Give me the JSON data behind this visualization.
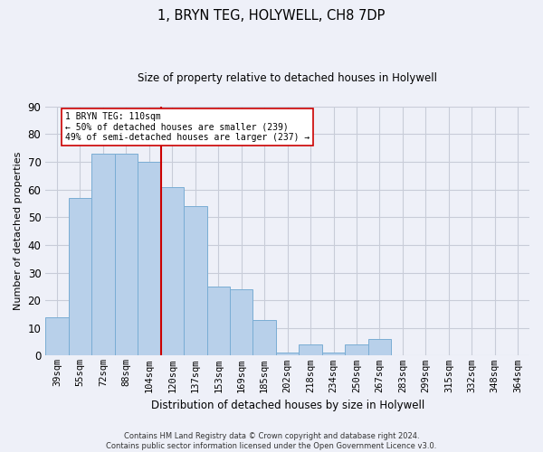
{
  "title": "1, BRYN TEG, HOLYWELL, CH8 7DP",
  "subtitle": "Size of property relative to detached houses in Holywell",
  "xlabel": "Distribution of detached houses by size in Holywell",
  "ylabel": "Number of detached properties",
  "categories": [
    "39sqm",
    "55sqm",
    "72sqm",
    "88sqm",
    "104sqm",
    "120sqm",
    "137sqm",
    "153sqm",
    "169sqm",
    "185sqm",
    "202sqm",
    "218sqm",
    "234sqm",
    "250sqm",
    "267sqm",
    "283sqm",
    "299sqm",
    "315sqm",
    "332sqm",
    "348sqm",
    "364sqm"
  ],
  "values": [
    14,
    57,
    73,
    73,
    70,
    61,
    54,
    25,
    24,
    13,
    1,
    4,
    1,
    4,
    6,
    0,
    0,
    0,
    0,
    0,
    0
  ],
  "bar_color": "#b8d0ea",
  "bar_edge_color": "#7aadd4",
  "ylim": [
    0,
    90
  ],
  "yticks": [
    0,
    10,
    20,
    30,
    40,
    50,
    60,
    70,
    80,
    90
  ],
  "property_line_x": 4.5,
  "property_line_color": "#cc0000",
  "annotation_text": "1 BRYN TEG: 110sqm\n← 50% of detached houses are smaller (239)\n49% of semi-detached houses are larger (237) →",
  "annotation_box_color": "#ffffff",
  "annotation_box_edge": "#cc0000",
  "footer_line1": "Contains HM Land Registry data © Crown copyright and database right 2024.",
  "footer_line2": "Contains public sector information licensed under the Open Government Licence v3.0.",
  "bg_color": "#eef0f8",
  "grid_color": "#c8ccd8",
  "title_fontsize": 10.5,
  "subtitle_fontsize": 8.5,
  "xlabel_fontsize": 8.5,
  "ylabel_fontsize": 8,
  "tick_fontsize": 7.5,
  "annotation_fontsize": 7,
  "footer_fontsize": 6
}
